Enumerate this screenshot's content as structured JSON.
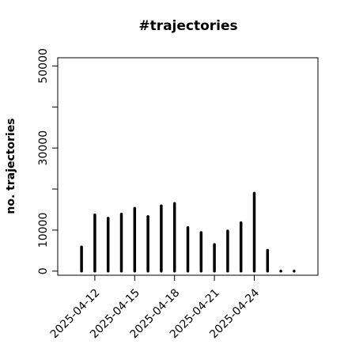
{
  "chart_data": {
    "type": "bar",
    "title": "#trajectories",
    "y_label": "no. trajectories",
    "x": [
      "2025-04-11",
      "2025-04-12",
      "2025-04-13",
      "2025-04-14",
      "2025-04-15",
      "2025-04-16",
      "2025-04-17",
      "2025-04-18",
      "2025-04-19",
      "2025-04-20",
      "2025-04-21",
      "2025-04-22",
      "2025-04-23",
      "2025-04-24",
      "2025-04-25",
      "2025-04-26",
      "2025-04-27"
    ],
    "values": [
      5900,
      13700,
      12900,
      13900,
      15300,
      13300,
      15900,
      16500,
      10600,
      9400,
      6500,
      9800,
      11800,
      19000,
      5100,
      0,
      0
    ],
    "color": "#000000",
    "xlim": [
      "2025-04-09T05:00",
      "2025-04-28T19:00"
    ],
    "xticks": [
      "2025-04-12",
      "2025-04-15",
      "2025-04-18",
      "2025-04-21",
      "2025-04-24"
    ],
    "ylim": [
      -1000,
      52000
    ],
    "yticks": [
      0,
      10000,
      {
        "value": 20000,
        "label": null
      },
      30000,
      {
        "value": 40000,
        "label": null
      },
      50000
    ]
  }
}
